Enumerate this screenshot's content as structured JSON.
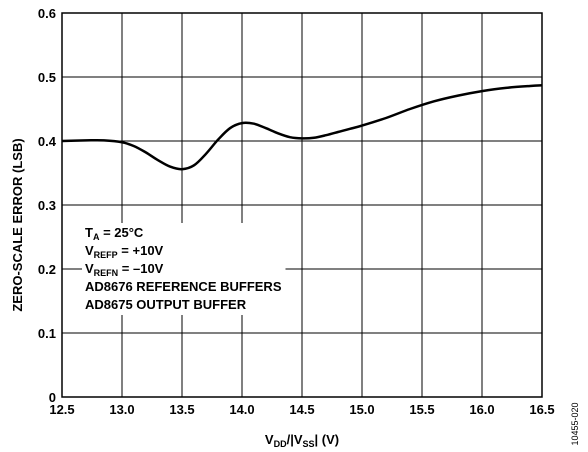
{
  "chart_data": {
    "type": "line",
    "title": "",
    "xlabel": {
      "v1": "V",
      "sub1": "DD",
      "mid": "/|V",
      "sub2": "SS",
      "end": "| (V)"
    },
    "ylabel": "ZERO-SCALE ERROR (LSB)",
    "xlim": [
      12.5,
      16.5
    ],
    "ylim": [
      0,
      0.6
    ],
    "xticks": [
      "12.5",
      "13.0",
      "13.5",
      "14.0",
      "14.5",
      "15.0",
      "15.5",
      "16.0",
      "16.5"
    ],
    "yticks": [
      "0",
      "0.1",
      "0.2",
      "0.3",
      "0.4",
      "0.5",
      "0.6"
    ],
    "grid": true,
    "series": [
      {
        "x": [
          12.5,
          12.7,
          12.85,
          13.0,
          13.1,
          13.2,
          13.3,
          13.4,
          13.5,
          13.6,
          13.7,
          13.8,
          13.9,
          14.0,
          14.1,
          14.2,
          14.3,
          14.4,
          14.5,
          14.6,
          14.7,
          14.8,
          14.9,
          15.0,
          15.2,
          15.4,
          15.6,
          15.8,
          16.0,
          16.2,
          16.4,
          16.5
        ],
        "y": [
          0.4,
          0.401,
          0.401,
          0.398,
          0.392,
          0.382,
          0.37,
          0.36,
          0.356,
          0.362,
          0.38,
          0.402,
          0.42,
          0.428,
          0.427,
          0.42,
          0.412,
          0.406,
          0.404,
          0.405,
          0.409,
          0.414,
          0.419,
          0.424,
          0.436,
          0.45,
          0.462,
          0.471,
          0.478,
          0.483,
          0.486,
          0.487
        ],
        "color": "#000000"
      }
    ],
    "annotations": [
      {
        "main": "T",
        "sub": "A",
        "rest": " = 25°C"
      },
      {
        "main": "V",
        "sub": "REFP",
        "rest": " = +10V"
      },
      {
        "main": "V",
        "sub": "REFN",
        "rest": " = –10V"
      },
      {
        "main": "AD8676 REFERENCE BUFFERS",
        "sub": "",
        "rest": ""
      },
      {
        "main": "AD8675 OUTPUT BUFFER",
        "sub": "",
        "rest": ""
      }
    ],
    "figure_code": "10455-020"
  }
}
